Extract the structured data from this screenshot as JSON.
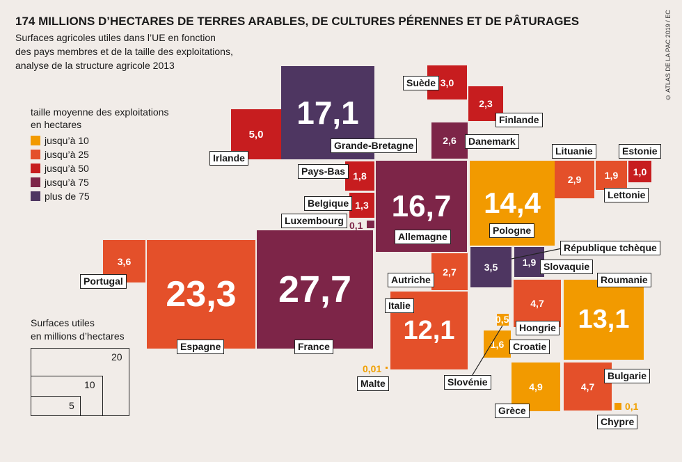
{
  "title": "174 MILLIONS D’HECTARES DE TERRES ARABLES, DE CULTURES PÉRENNES ET DE PÂTURAGES",
  "subtitle": [
    "Surfaces agricoles utiles dans l’UE en fonction",
    "des pays membres et de la taille des exploitations,",
    "analyse de la structure agricole 2013"
  ],
  "credit": "© ATLAS DE LA PAC 2019 / EC",
  "legend": {
    "title": [
      "taille moyenne des exploitations",
      " en hectares"
    ],
    "items": [
      {
        "label": "jusqu’à 10",
        "color": "#f29a00"
      },
      {
        "label": "jusqu’à 25",
        "color": "#e4502a"
      },
      {
        "label": "jusqu’à 50",
        "color": "#c71d1f"
      },
      {
        "label": "jusqu’à 75",
        "color": "#7d2548"
      },
      {
        "label": "plus de 75",
        "color": "#4e3661"
      }
    ]
  },
  "size_legend": {
    "title": [
      "Surfaces utiles",
      "en millions d’hectares"
    ],
    "values": [
      "20",
      "10",
      "5"
    ]
  },
  "countries": [
    {
      "name": "Irlande",
      "value": "5,0",
      "class": "jusqu’à 50"
    },
    {
      "name": "Grande-Bretagne",
      "value": "17,1",
      "class": "plus de 75"
    },
    {
      "name": "Suède",
      "value": "3,0",
      "class": "jusqu’à 50"
    },
    {
      "name": "Finlande",
      "value": "2,3",
      "class": "jusqu’à 50"
    },
    {
      "name": "Danemark",
      "value": "2,6",
      "class": "jusqu’à 75"
    },
    {
      "name": "Pays-Bas",
      "value": "1,8",
      "class": "jusqu’à 50"
    },
    {
      "name": "Belgique",
      "value": "1,3",
      "class": "jusqu’à 50"
    },
    {
      "name": "Luxembourg",
      "value": "0,1",
      "class": "jusqu’à 75"
    },
    {
      "name": "Allemagne",
      "value": "16,7",
      "class": "jusqu’à 75"
    },
    {
      "name": "Pologne",
      "value": "14,4",
      "class": "jusqu’à 10"
    },
    {
      "name": "Lituanie",
      "value": "2,9",
      "class": "jusqu’à 25"
    },
    {
      "name": "Lettonie",
      "value": "1,9",
      "class": "jusqu’à 25"
    },
    {
      "name": "Estonie",
      "value": "1,0",
      "class": "jusqu’à 50"
    },
    {
      "name": "Portugal",
      "value": "3,6",
      "class": "jusqu’à 25"
    },
    {
      "name": "Espagne",
      "value": "23,3",
      "class": "jusqu’à 25"
    },
    {
      "name": "France",
      "value": "27,7",
      "class": "jusqu’à 75"
    },
    {
      "name": "Autriche",
      "value": "2,7",
      "class": "jusqu’à 25"
    },
    {
      "name": "République tchèque",
      "value": "3,5",
      "class": "plus de 75"
    },
    {
      "name": "Slovaquie",
      "value": "1,9",
      "class": "plus de 75"
    },
    {
      "name": "Italie",
      "value": "12,1",
      "class": "jusqu’à 25"
    },
    {
      "name": "Hongrie",
      "value": "4,7",
      "class": "jusqu’à 25"
    },
    {
      "name": "Roumanie",
      "value": "13,1",
      "class": "jusqu’à 10"
    },
    {
      "name": "Slovénie",
      "value": "0,5",
      "class": "jusqu’à 10"
    },
    {
      "name": "Croatie",
      "value": "1,6",
      "class": "jusqu’à 10"
    },
    {
      "name": "Malte",
      "value": "0,01",
      "class": "jusqu’à 10"
    },
    {
      "name": "Grèce",
      "value": "4,9",
      "class": "jusqu’à 10"
    },
    {
      "name": "Bulgarie",
      "value": "4,7",
      "class": "jusqu’à 25"
    },
    {
      "name": "Chypre",
      "value": "0,1",
      "class": "jusqu’à 10"
    }
  ]
}
